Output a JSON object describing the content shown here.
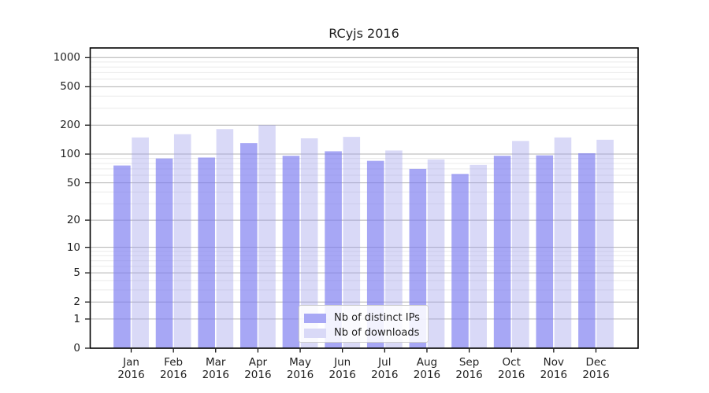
{
  "chart_data": {
    "type": "bar",
    "title": "RCyjs 2016",
    "categories": [
      "Jan 2016",
      "Feb 2016",
      "Mar 2016",
      "Apr 2016",
      "May 2016",
      "Jun 2016",
      "Jul 2016",
      "Aug 2016",
      "Sep 2016",
      "Oct 2016",
      "Nov 2016",
      "Dec 2016"
    ],
    "series": [
      {
        "name": "Nb of distinct IPs",
        "values": [
          76,
          90,
          92,
          130,
          96,
          107,
          85,
          70,
          62,
          96,
          97,
          102
        ],
        "color": "#a8a8f5",
        "bar_fill": "rgba(124,124,240,0.67)"
      },
      {
        "name": "Nb of downloads",
        "values": [
          149,
          161,
          182,
          200,
          146,
          151,
          109,
          88,
          77,
          137,
          149,
          141
        ],
        "color": "#d9d9f7",
        "bar_fill": "rgba(160,160,235,0.40)"
      }
    ],
    "xlabel": "",
    "ylabel": "",
    "y_scale": "log10(value+1)",
    "ylim": [
      0,
      1260
    ],
    "y_ticks": [
      0,
      1,
      2,
      5,
      10,
      20,
      50,
      100,
      200,
      500,
      1000
    ],
    "y_minor_ticks": [
      3,
      4,
      6,
      7,
      8,
      9,
      30,
      40,
      60,
      70,
      80,
      90,
      300,
      400,
      600,
      700,
      800,
      900
    ],
    "grid": "horizontal major+minor",
    "legend_position": "inside bottom-center"
  },
  "colors": {
    "background": "#ffffff",
    "spine": "#000000",
    "grid_major": "#b0b0b0",
    "grid_minor": "#eaeaea",
    "text": "#1f1f1f",
    "legend_border": "#cccccc"
  }
}
